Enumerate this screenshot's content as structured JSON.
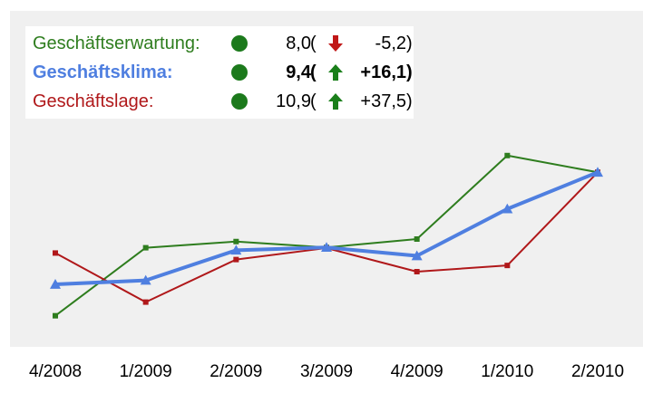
{
  "chart_data": {
    "type": "line",
    "title": "",
    "xlabel": "",
    "ylabel": "",
    "categories": [
      "4/2008",
      "1/2009",
      "2/2009",
      "3/2009",
      "4/2009",
      "1/2010",
      "2/2010"
    ],
    "ylim": [
      -25,
      45
    ],
    "grid": false,
    "legend_position": "top-left",
    "series": [
      {
        "name": "Geschäftserwartung",
        "color": "#2e7d1e",
        "values": [
          -21.7,
          0.2,
          2.2,
          0.3,
          3.0,
          29.9,
          24.5
        ],
        "current": "8,0",
        "change": "-5,2",
        "trend": "down",
        "bold": false
      },
      {
        "name": "Geschäftsklima",
        "color": "#4f7fe0",
        "values": [
          -11.6,
          -10.3,
          -0.6,
          0.3,
          -2.4,
          12.7,
          24.5
        ],
        "current": "9,4",
        "change": "+16,1",
        "trend": "up",
        "bold": true
      },
      {
        "name": "Geschäftslage",
        "color": "#b0181a",
        "values": [
          -1.5,
          -17.3,
          -3.6,
          0.1,
          -7.5,
          -5.5,
          24.5
        ],
        "current": "10,9",
        "change": "+37,5",
        "trend": "up",
        "bold": false
      }
    ]
  },
  "indicator_colors": {
    "status_dot": "#1c7a1c",
    "arrow_up": "#1a7f1a",
    "arrow_down": "#c01818"
  },
  "legend_labels": {
    "open_paren": "(",
    "close_paren": ")"
  }
}
